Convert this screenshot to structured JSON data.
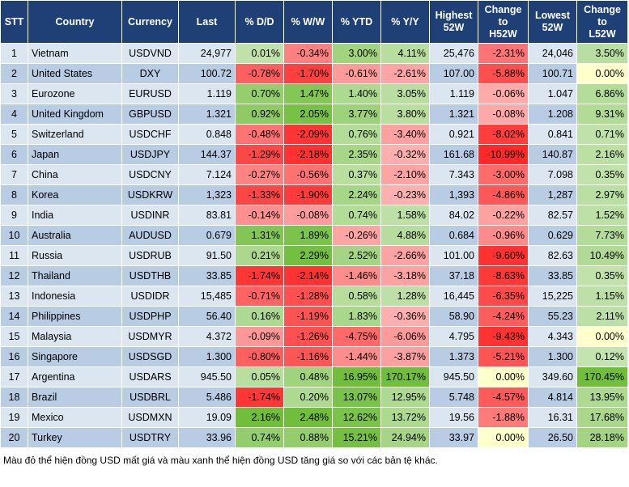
{
  "table": {
    "header": [
      "STT",
      "Country",
      "Currency",
      "Last",
      "% D/D",
      "% W/W",
      "% YTD",
      "% Y/Y",
      "Highest\n52W",
      "Change\nto\nH52W",
      "Lowest\n52W",
      "Change\nto\nL52W"
    ],
    "rows": [
      [
        "1",
        "Vietnam",
        "USDVND",
        "24,977",
        "0.01%",
        "-0.34%",
        "3.00%",
        "4.11%",
        "25,476",
        "-2.31%",
        "24,046",
        "3.50%"
      ],
      [
        "2",
        "United States",
        "DXY",
        "100.72",
        "-0.78%",
        "-1.70%",
        "-0.61%",
        "-2.61%",
        "107.00",
        "-5.88%",
        "100.71",
        "0.00%"
      ],
      [
        "3",
        "Eurozone",
        "EURUSD",
        "1.119",
        "0.70%",
        "1.47%",
        "1.40%",
        "3.05%",
        "1.119",
        "-0.06%",
        "1.047",
        "6.86%"
      ],
      [
        "4",
        "United Kingdom",
        "GBPUSD",
        "1.321",
        "0.92%",
        "2.05%",
        "3.77%",
        "3.80%",
        "1.321",
        "-0.08%",
        "1.208",
        "9.31%"
      ],
      [
        "5",
        "Switzerland",
        "USDCHF",
        "0.848",
        "-0.48%",
        "-2.09%",
        "0.76%",
        "-3.40%",
        "0.921",
        "-8.02%",
        "0.841",
        "0.71%"
      ],
      [
        "6",
        "Japan",
        "USDJPY",
        "144.37",
        "-1.29%",
        "-2.18%",
        "2.35%",
        "-0.32%",
        "161.68",
        "-10.99%",
        "140.87",
        "2.16%"
      ],
      [
        "7",
        "China",
        "USDCNY",
        "7.124",
        "-0.27%",
        "-0.56%",
        "0.37%",
        "-2.10%",
        "7.343",
        "-3.00%",
        "7.098",
        "0.35%"
      ],
      [
        "8",
        "Korea",
        "USDKRW",
        "1,323",
        "-1.33%",
        "-1.90%",
        "2.24%",
        "-0.23%",
        "1,393",
        "-4.86%",
        "1,287",
        "2.97%"
      ],
      [
        "9",
        "India",
        "USDINR",
        "83.81",
        "-0.14%",
        "-0.08%",
        "0.74%",
        "1.58%",
        "84.02",
        "-0.22%",
        "82.57",
        "1.52%"
      ],
      [
        "10",
        "Australia",
        "AUDUSD",
        "0.679",
        "1.31%",
        "1.89%",
        "-0.26%",
        "4.88%",
        "0.684",
        "-0.96%",
        "0.629",
        "7.73%"
      ],
      [
        "11",
        "Russia",
        "USDRUB",
        "91.50",
        "0.21%",
        "2.29%",
        "2.52%",
        "-2.66%",
        "101.00",
        "-9.60%",
        "82.63",
        "10.49%"
      ],
      [
        "12",
        "Thailand",
        "USDTHB",
        "33.85",
        "-1.74%",
        "-2.14%",
        "-1.46%",
        "-3.18%",
        "37.18",
        "-8.63%",
        "33.85",
        "0.35%"
      ],
      [
        "13",
        "Indonesia",
        "USDIDR",
        "15,485",
        "-0.71%",
        "-1.28%",
        "0.58%",
        "1.28%",
        "16,445",
        "-6.35%",
        "15,225",
        "1.15%"
      ],
      [
        "14",
        "Philippines",
        "USDPHP",
        "56.40",
        "0.16%",
        "-1.19%",
        "1.83%",
        "-0.36%",
        "58.90",
        "-4.24%",
        "55.23",
        "2.11%"
      ],
      [
        "15",
        "Malaysia",
        "USDMYR",
        "4.372",
        "-0.09%",
        "-1.26%",
        "-4.75%",
        "-6.06%",
        "4.795",
        "-9.43%",
        "4.343",
        "0.00%"
      ],
      [
        "16",
        "Singapore",
        "USDSGD",
        "1.300",
        "-0.80%",
        "-1.16%",
        "-1.44%",
        "-3.87%",
        "1.373",
        "-5.21%",
        "1.300",
        "0.12%"
      ],
      [
        "17",
        "Argentina",
        "USDARS",
        "945.50",
        "0.05%",
        "0.48%",
        "16.95%",
        "170.17%",
        "945.50",
        "0.00%",
        "349.60",
        "170.45%"
      ],
      [
        "18",
        "Brazil",
        "USDBRL",
        "5.486",
        "-1.74%",
        "0.20%",
        "13.07%",
        "12.95%",
        "5.748",
        "-4.57%",
        "4.814",
        "13.95%"
      ],
      [
        "19",
        "Mexico",
        "USDMXN",
        "19.09",
        "2.16%",
        "2.48%",
        "12.62%",
        "13.72%",
        "19.56",
        "-1.88%",
        "16.31",
        "17.68%"
      ],
      [
        "20",
        "Turkey",
        "USDTRY",
        "33.96",
        "0.74%",
        "0.88%",
        "15.21%",
        "24.94%",
        "33.97",
        "0.00%",
        "26.50",
        "28.18%"
      ]
    ],
    "heat_columns": [
      4,
      5,
      6,
      7,
      9,
      11
    ]
  },
  "footnote": "Màu đỏ thể hiện đồng USD mất giá và màu xanh thể hiện đồng USD tăng giá so với các bản tệ khác."
}
